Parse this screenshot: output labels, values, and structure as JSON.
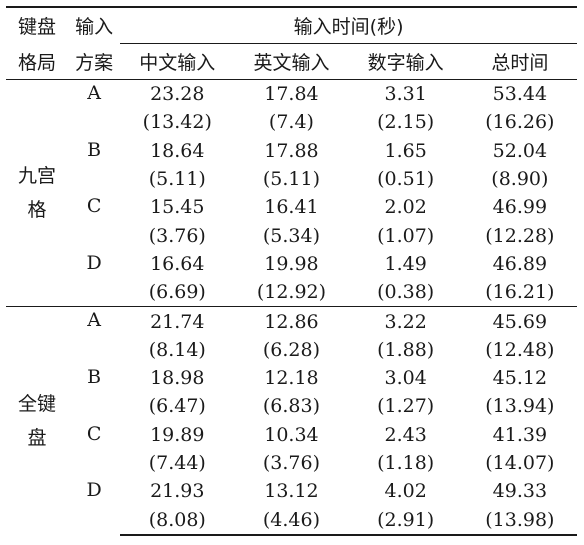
{
  "header": {
    "layout_label": [
      "键盘",
      "格局"
    ],
    "scheme_label": [
      "输入",
      "方案"
    ],
    "span_label": "输入时间(秒)",
    "columns": [
      "中文输入",
      "英文输入",
      "数字输入",
      "总时间"
    ]
  },
  "groups": [
    {
      "layout": [
        "九宫",
        "格"
      ],
      "schemes": [
        {
          "name": "A",
          "means": [
            "23.28",
            "17.84",
            "3.31",
            "53.44"
          ],
          "sds": [
            "(13.42)",
            "(7.4)",
            "(2.15)",
            "(16.26)"
          ]
        },
        {
          "name": "B",
          "means": [
            "18.64",
            "17.88",
            "1.65",
            "52.04"
          ],
          "sds": [
            "(5.11)",
            "(5.11)",
            "(0.51)",
            "(8.90)"
          ]
        },
        {
          "name": "C",
          "means": [
            "15.45",
            "16.41",
            "2.02",
            "46.99"
          ],
          "sds": [
            "(3.76)",
            "(5.34)",
            "(1.07)",
            "(12.28)"
          ]
        },
        {
          "name": "D",
          "means": [
            "16.64",
            "19.98",
            "1.49",
            "46.89"
          ],
          "sds": [
            "(6.69)",
            "(12.92)",
            "(0.38)",
            "(16.21)"
          ]
        }
      ]
    },
    {
      "layout": [
        "全键",
        "盘"
      ],
      "schemes": [
        {
          "name": "A",
          "means": [
            "21.74",
            "12.86",
            "3.22",
            "45.69"
          ],
          "sds": [
            "(8.14)",
            "(6.28)",
            "(1.88)",
            "(12.48)"
          ]
        },
        {
          "name": "B",
          "means": [
            "18.98",
            "12.18",
            "3.04",
            "45.12"
          ],
          "sds": [
            "(6.47)",
            "(6.83)",
            "(1.27)",
            "(13.94)"
          ]
        },
        {
          "name": "C",
          "means": [
            "19.89",
            "10.34",
            "2.43",
            "41.39"
          ],
          "sds": [
            "(7.44)",
            "(3.76)",
            "(1.18)",
            "(14.07)"
          ]
        },
        {
          "name": "D",
          "means": [
            "21.93",
            "13.12",
            "4.02",
            "49.33"
          ],
          "sds": [
            "(8.08)",
            "(4.46)",
            "(2.91)",
            "(13.98)"
          ]
        }
      ]
    }
  ]
}
